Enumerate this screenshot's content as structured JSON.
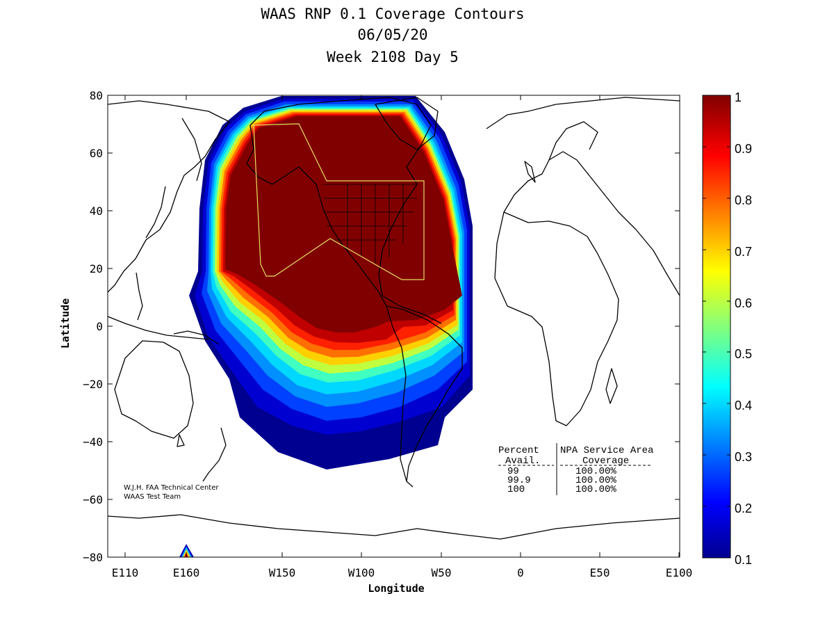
{
  "title_lines": [
    "WAAS RNP 0.1 Coverage Contours",
    "06/05/20",
    "Week 2108 Day 5"
  ],
  "xlabel": "Longitude",
  "ylabel": "Latitude",
  "x_ticks": [
    "E110",
    "E160",
    "W150",
    "W100",
    "W50",
    "0",
    "E50",
    "E100"
  ],
  "y_ticks": [
    "80",
    "60",
    "40",
    "20",
    "0",
    "−20",
    "−40",
    "−60",
    "−80"
  ],
  "colorbar": {
    "ticks": [
      "1",
      "0.9",
      "0.8",
      "0.7",
      "0.6",
      "0.5",
      "0.4",
      "0.3",
      "0.2",
      "0.1"
    ],
    "range": [
      0.1,
      1
    ],
    "colormap": "jet"
  },
  "credit": [
    "W.J.H. FAA Technical Center",
    "WAAS Test Team"
  ],
  "table": {
    "headers": [
      "Percent",
      "NPA Service Area"
    ],
    "subheaders": [
      "Avail.",
      "Coverage"
    ],
    "rows": [
      {
        "avail": "99",
        "coverage": "100.00%"
      },
      {
        "avail": "99.9",
        "coverage": "100.00%"
      },
      {
        "avail": "100",
        "coverage": "100.00%"
      }
    ]
  },
  "chart_data": {
    "type": "heatmap",
    "title": "WAAS RNP 0.1 Coverage Contours",
    "xlabel": "Longitude",
    "ylabel": "Latitude",
    "ylim": [
      -80,
      80
    ],
    "colorbar_range": [
      0.1,
      1
    ],
    "grid": false
  }
}
